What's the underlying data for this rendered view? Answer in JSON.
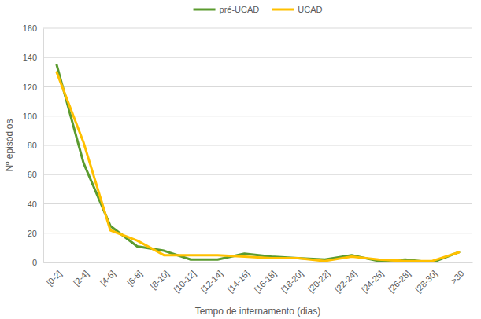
{
  "chart_data": {
    "type": "line",
    "x_label": "Tempo de internamento (dias)",
    "y_label": "Nº episódios",
    "categories": [
      "[0-2]",
      "[2-4]",
      "[4-6]",
      "[6-8]",
      "[8-10]",
      "[10-12]",
      "[12-14]",
      "[14-16]",
      "[16-18]",
      "[18-20]",
      "[20-22]",
      "[22-24]",
      "[24-26]",
      "[26-28]",
      "[28-30]",
      ">30"
    ],
    "series": [
      {
        "name": "pré-UCAD",
        "color": "#5b9b2f",
        "values": [
          135,
          68,
          25,
          11,
          8,
          2,
          2,
          6,
          4,
          3,
          2,
          5,
          1,
          2,
          0,
          7
        ]
      },
      {
        "name": "UCAD",
        "color": "#ffc000",
        "values": [
          130,
          82,
          22,
          15,
          5,
          5,
          5,
          4,
          3,
          3,
          1,
          4,
          2,
          1,
          1,
          7
        ]
      }
    ],
    "ylim": [
      0,
      160
    ],
    "yticks": [
      0,
      20,
      40,
      60,
      80,
      100,
      120,
      140,
      160
    ],
    "grid": true,
    "legend": "top"
  }
}
